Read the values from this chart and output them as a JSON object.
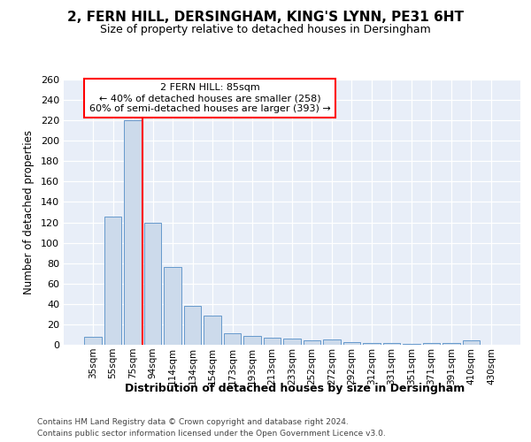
{
  "title": "2, FERN HILL, DERSINGHAM, KING'S LYNN, PE31 6HT",
  "subtitle": "Size of property relative to detached houses in Dersingham",
  "xlabel": "Distribution of detached houses by size in Dersingham",
  "ylabel": "Number of detached properties",
  "categories": [
    "35sqm",
    "55sqm",
    "75sqm",
    "94sqm",
    "114sqm",
    "134sqm",
    "154sqm",
    "173sqm",
    "193sqm",
    "213sqm",
    "233sqm",
    "252sqm",
    "272sqm",
    "292sqm",
    "312sqm",
    "331sqm",
    "351sqm",
    "371sqm",
    "391sqm",
    "410sqm",
    "430sqm"
  ],
  "values": [
    8,
    126,
    220,
    120,
    76,
    38,
    29,
    11,
    9,
    7,
    6,
    4,
    5,
    3,
    2,
    2,
    1,
    2,
    2,
    4,
    0
  ],
  "bar_color": "#ccdaeb",
  "bar_edge_color": "#6699cc",
  "red_line_index": 2,
  "annotation_text": "2 FERN HILL: 85sqm\n← 40% of detached houses are smaller (258)\n60% of semi-detached houses are larger (393) →",
  "annotation_box_color": "white",
  "annotation_box_edge": "red",
  "ylim": [
    0,
    260
  ],
  "yticks": [
    0,
    20,
    40,
    60,
    80,
    100,
    120,
    140,
    160,
    180,
    200,
    220,
    240,
    260
  ],
  "footnote1": "Contains HM Land Registry data © Crown copyright and database right 2024.",
  "footnote2": "Contains public sector information licensed under the Open Government Licence v3.0.",
  "background_color": "#e8eef8",
  "grid_color": "white"
}
